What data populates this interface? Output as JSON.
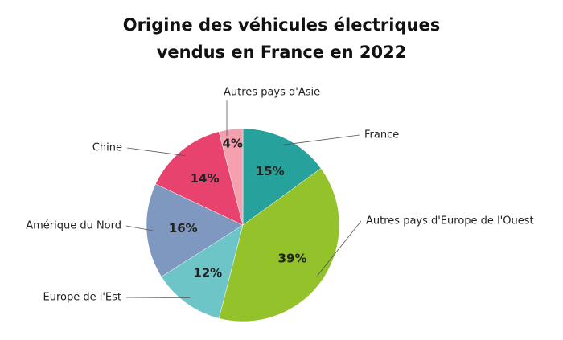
{
  "chart_data": {
    "type": "pie",
    "title": "Origine des véhicules électriques vendus en France en 2022",
    "categories": [
      "France",
      "Autres pays d'Europe de l'Ouest",
      "Europe de l'Est",
      "Amérique du Nord",
      "Chine",
      "Autres pays d'Asie"
    ],
    "values": [
      15,
      39,
      12,
      16,
      14,
      4
    ],
    "value_labels": [
      "15%",
      "39%",
      "12%",
      "16%",
      "14%",
      "4%"
    ],
    "colors": [
      "#26a19b",
      "#93c22a",
      "#6ec5c8",
      "#7f98c0",
      "#e8436e",
      "#f4a0ae"
    ]
  }
}
